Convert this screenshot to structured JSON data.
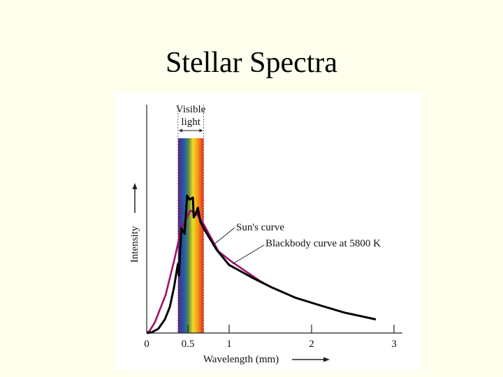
{
  "slide": {
    "title": "Stellar Spectra"
  },
  "chart_data": {
    "type": "line",
    "title": "",
    "xlabel": "Wavelength (mm)",
    "ylabel": "Intensity",
    "xlim": [
      0,
      3.1
    ],
    "ylim": [
      0,
      1.68
    ],
    "xticks": [
      {
        "value": 0,
        "label": "0"
      },
      {
        "value": 0.5,
        "label": "0.5"
      },
      {
        "value": 1,
        "label": "1"
      },
      {
        "value": 2,
        "label": "2"
      },
      {
        "value": 3,
        "label": "3"
      }
    ],
    "visible_band": {
      "label_line1": "Visible",
      "label_line2": "light",
      "range": [
        0.38,
        0.69
      ]
    },
    "series": [
      {
        "name": "Blackbody curve at 5800 K",
        "color": "#A0116A",
        "x": [
          0,
          0.04,
          0.1,
          0.23,
          0.34,
          0.42,
          0.53,
          0.6,
          0.69,
          0.87,
          1.04,
          1.38,
          1.5
        ],
        "y": [
          0,
          0.02,
          0.08,
          0.28,
          0.55,
          0.77,
          0.9,
          0.88,
          0.8,
          0.6,
          0.52,
          0.38,
          0.34
        ]
      },
      {
        "name": "Sun's curve",
        "color": "#000000",
        "x": [
          0,
          0.06,
          0.14,
          0.22,
          0.28,
          0.33,
          0.37,
          0.38,
          0.39,
          0.42,
          0.44,
          0.46,
          0.49,
          0.52,
          0.56,
          0.57,
          0.6,
          0.62,
          0.65,
          0.7,
          0.85,
          1.0,
          1.27,
          1.5,
          1.8,
          2.12,
          2.4,
          2.78
        ],
        "y": [
          0,
          0.005,
          0.03,
          0.1,
          0.19,
          0.33,
          0.48,
          0.51,
          0.42,
          0.77,
          0.75,
          0.73,
          1.01,
          0.98,
          0.995,
          0.85,
          0.88,
          0.92,
          0.82,
          0.76,
          0.61,
          0.5,
          0.41,
          0.34,
          0.26,
          0.2,
          0.15,
          0.1
        ]
      }
    ],
    "annotations": [
      {
        "text": "Sun's curve",
        "series": "Sun's curve"
      },
      {
        "text": "Blackbody curve at 5800 K",
        "series": "Blackbody curve at 5800 K"
      }
    ]
  }
}
